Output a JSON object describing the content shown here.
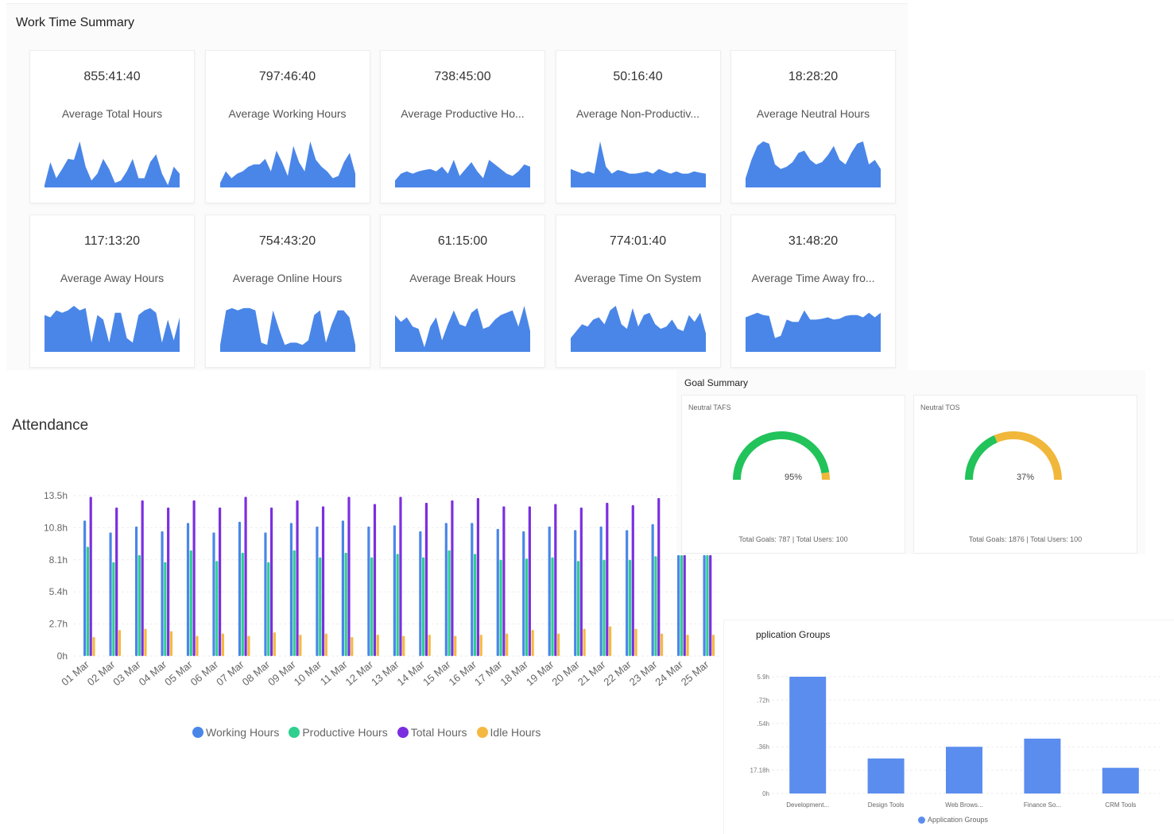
{
  "work_time_summary": {
    "title": "Work Time Summary",
    "cards": [
      {
        "value": "855:41:40",
        "label": "Average Total Hours",
        "spark": [
          0.05,
          0.55,
          0.2,
          0.4,
          0.62,
          0.6,
          1.0,
          0.45,
          0.15,
          0.3,
          0.62,
          0.4,
          0.1,
          0.15,
          0.35,
          0.62,
          0.2,
          0.2,
          0.55,
          0.72,
          0.3,
          0.05,
          0.45,
          0.3
        ]
      },
      {
        "value": "797:46:40",
        "label": "Average Working Hours",
        "spark": [
          0.1,
          0.35,
          0.2,
          0.3,
          0.35,
          0.45,
          0.5,
          0.5,
          0.62,
          0.35,
          0.8,
          0.55,
          0.25,
          0.9,
          0.55,
          0.35,
          1.0,
          0.6,
          0.45,
          0.35,
          0.2,
          0.25,
          0.55,
          0.75,
          0.3
        ]
      },
      {
        "value": "738:45:00",
        "label": "Average Productive Ho...",
        "spark": [
          0.15,
          0.3,
          0.35,
          0.3,
          0.35,
          0.38,
          0.4,
          0.35,
          0.45,
          0.3,
          0.6,
          0.25,
          0.4,
          0.55,
          0.35,
          0.2,
          0.6,
          0.5,
          0.4,
          0.3,
          0.25,
          0.35,
          0.5,
          0.45
        ]
      },
      {
        "value": "50:16:40",
        "label": "Average Non-Productiv...",
        "spark": [
          0.4,
          0.35,
          0.3,
          0.35,
          0.3,
          1.0,
          0.45,
          0.3,
          0.38,
          0.35,
          0.3,
          0.3,
          0.32,
          0.35,
          0.3,
          0.4,
          0.35,
          0.3,
          0.35,
          0.3,
          0.3,
          0.35,
          0.32,
          0.3
        ]
      },
      {
        "value": "18:28:20",
        "label": "Average Neutral Hours",
        "spark": [
          0.2,
          0.6,
          0.9,
          1.0,
          0.95,
          0.5,
          0.4,
          0.45,
          0.55,
          0.75,
          0.8,
          0.6,
          0.5,
          0.55,
          0.7,
          0.9,
          0.6,
          0.5,
          0.75,
          0.95,
          1.0,
          0.5,
          0.6,
          0.4
        ]
      },
      {
        "value": "117:13:20",
        "label": "Average Away Hours",
        "spark": [
          0.8,
          0.75,
          0.9,
          0.85,
          0.9,
          1.0,
          0.9,
          0.95,
          0.2,
          0.8,
          0.7,
          0.2,
          0.85,
          0.85,
          0.3,
          0.2,
          0.8,
          0.9,
          0.95,
          0.85,
          0.2,
          0.7,
          0.25,
          0.75
        ]
      },
      {
        "value": "754:43:20",
        "label": "Average Online Hours",
        "spark": [
          0.15,
          0.9,
          0.95,
          0.9,
          0.95,
          0.95,
          0.9,
          0.2,
          0.15,
          0.9,
          0.5,
          0.15,
          0.2,
          0.2,
          0.15,
          0.25,
          0.8,
          0.9,
          0.2,
          0.6,
          0.9,
          0.9,
          0.75,
          0.15
        ]
      },
      {
        "value": "61:15:00",
        "label": "Average Break Hours",
        "spark": [
          0.8,
          0.65,
          0.75,
          0.55,
          0.5,
          0.1,
          0.55,
          0.75,
          0.25,
          0.6,
          0.9,
          0.6,
          0.55,
          0.85,
          0.95,
          0.5,
          0.55,
          0.7,
          0.8,
          0.85,
          0.9,
          0.55,
          1.0,
          0.45
        ]
      },
      {
        "value": "774:01:40",
        "label": "Average Time On System",
        "spark": [
          0.3,
          0.45,
          0.6,
          0.55,
          0.7,
          0.75,
          0.6,
          0.9,
          1.0,
          0.6,
          0.5,
          0.95,
          0.55,
          0.8,
          0.85,
          0.6,
          0.5,
          0.55,
          0.7,
          0.5,
          0.45,
          0.8,
          0.65,
          0.85,
          0.4
        ]
      },
      {
        "value": "31:48:20",
        "label": "Average Time Away fro...",
        "spark": [
          0.75,
          0.8,
          0.85,
          0.8,
          0.78,
          0.3,
          0.35,
          0.7,
          0.65,
          0.65,
          0.9,
          0.7,
          0.7,
          0.72,
          0.75,
          0.7,
          0.72,
          0.78,
          0.8,
          0.8,
          0.75,
          0.85,
          0.75,
          0.85
        ]
      }
    ]
  },
  "attendance": {
    "title": "Attendance",
    "legend": {
      "working": "Working Hours",
      "productive": "Productive Hours",
      "total": "Total Hours",
      "idle": "Idle Hours"
    },
    "colors": {
      "working": "#4a86e8",
      "productive": "#2ecf8f",
      "total": "#7b2fe0",
      "idle": "#f5b942"
    },
    "chart_data": {
      "type": "bar",
      "categories": [
        "01 Mar",
        "02 Mar",
        "03 Mar",
        "04 Mar",
        "05 Mar",
        "06 Mar",
        "07 Mar",
        "08 Mar",
        "09 Mar",
        "10 Mar",
        "11 Mar",
        "12 Mar",
        "13 Mar",
        "14 Mar",
        "15 Mar",
        "16 Mar",
        "17 Mar",
        "18 Mar",
        "19 Mar",
        "20 Mar",
        "21 Mar",
        "22 Mar",
        "23 Mar",
        "24 Mar",
        "25 Mar"
      ],
      "y_ticks": [
        "0h",
        "2.7h",
        "5.4h",
        "8.1h",
        "10.8h",
        "13.5h"
      ],
      "ylim": [
        0,
        13.5
      ],
      "series": [
        {
          "name": "Working Hours",
          "values": [
            11.4,
            10.4,
            10.9,
            10.5,
            11.2,
            10.4,
            11.3,
            10.4,
            11.2,
            10.9,
            11.4,
            10.9,
            11.0,
            10.5,
            11.2,
            11.2,
            10.7,
            10.5,
            10.9,
            10.6,
            10.9,
            10.6,
            11.1,
            8.5,
            8.5
          ]
        },
        {
          "name": "Productive Hours",
          "values": [
            9.2,
            7.9,
            8.5,
            7.9,
            8.9,
            8.0,
            8.7,
            7.9,
            8.9,
            8.3,
            8.7,
            8.3,
            8.6,
            8.3,
            8.9,
            8.6,
            8.1,
            8.2,
            8.3,
            8.0,
            8.1,
            8.1,
            8.4,
            8.5,
            8.5
          ]
        },
        {
          "name": "Total Hours",
          "values": [
            13.4,
            12.5,
            13.1,
            12.5,
            13.1,
            12.5,
            13.4,
            12.5,
            13.1,
            12.6,
            13.4,
            12.8,
            13.4,
            12.9,
            13.1,
            13.3,
            12.6,
            12.6,
            12.8,
            12.5,
            12.9,
            12.7,
            13.3,
            8.5,
            8.5
          ]
        },
        {
          "name": "Idle Hours",
          "values": [
            1.6,
            2.2,
            2.3,
            2.1,
            1.7,
            1.9,
            1.7,
            2.0,
            1.8,
            1.9,
            1.6,
            1.8,
            1.7,
            1.8,
            1.7,
            1.8,
            1.9,
            2.2,
            1.9,
            2.3,
            2.5,
            2.3,
            1.9,
            1.8,
            1.8
          ]
        }
      ]
    }
  },
  "goal_summary": {
    "title": "Goal Summary",
    "colors": {
      "green": "#22c35a",
      "amber": "#f0b73a"
    },
    "gauges": [
      {
        "title": "Neutral TAFS",
        "percent": 95,
        "label": "95%",
        "footer": "Total Goals: 787 | Total Users: 100"
      },
      {
        "title": "Neutral TOS",
        "percent": 37,
        "label": "37%",
        "footer": "Total Goals: 1876 | Total Users: 100"
      }
    ]
  },
  "application_groups": {
    "title": "pplication Groups",
    "legend": "Application Groups",
    "color": "#5b8def",
    "chart_data": {
      "type": "bar",
      "categories": [
        "Development...",
        "Design Tools",
        "Web Brows...",
        "Finance So...",
        "CRM Tools"
      ],
      "y_ticks": [
        "0h",
        "17.18h",
        ".36h",
        ".54h",
        ".72h",
        "5.9h"
      ],
      "values": [
        1.0,
        0.3,
        0.4,
        0.47,
        0.22
      ],
      "ylim": [
        0,
        1
      ]
    }
  }
}
